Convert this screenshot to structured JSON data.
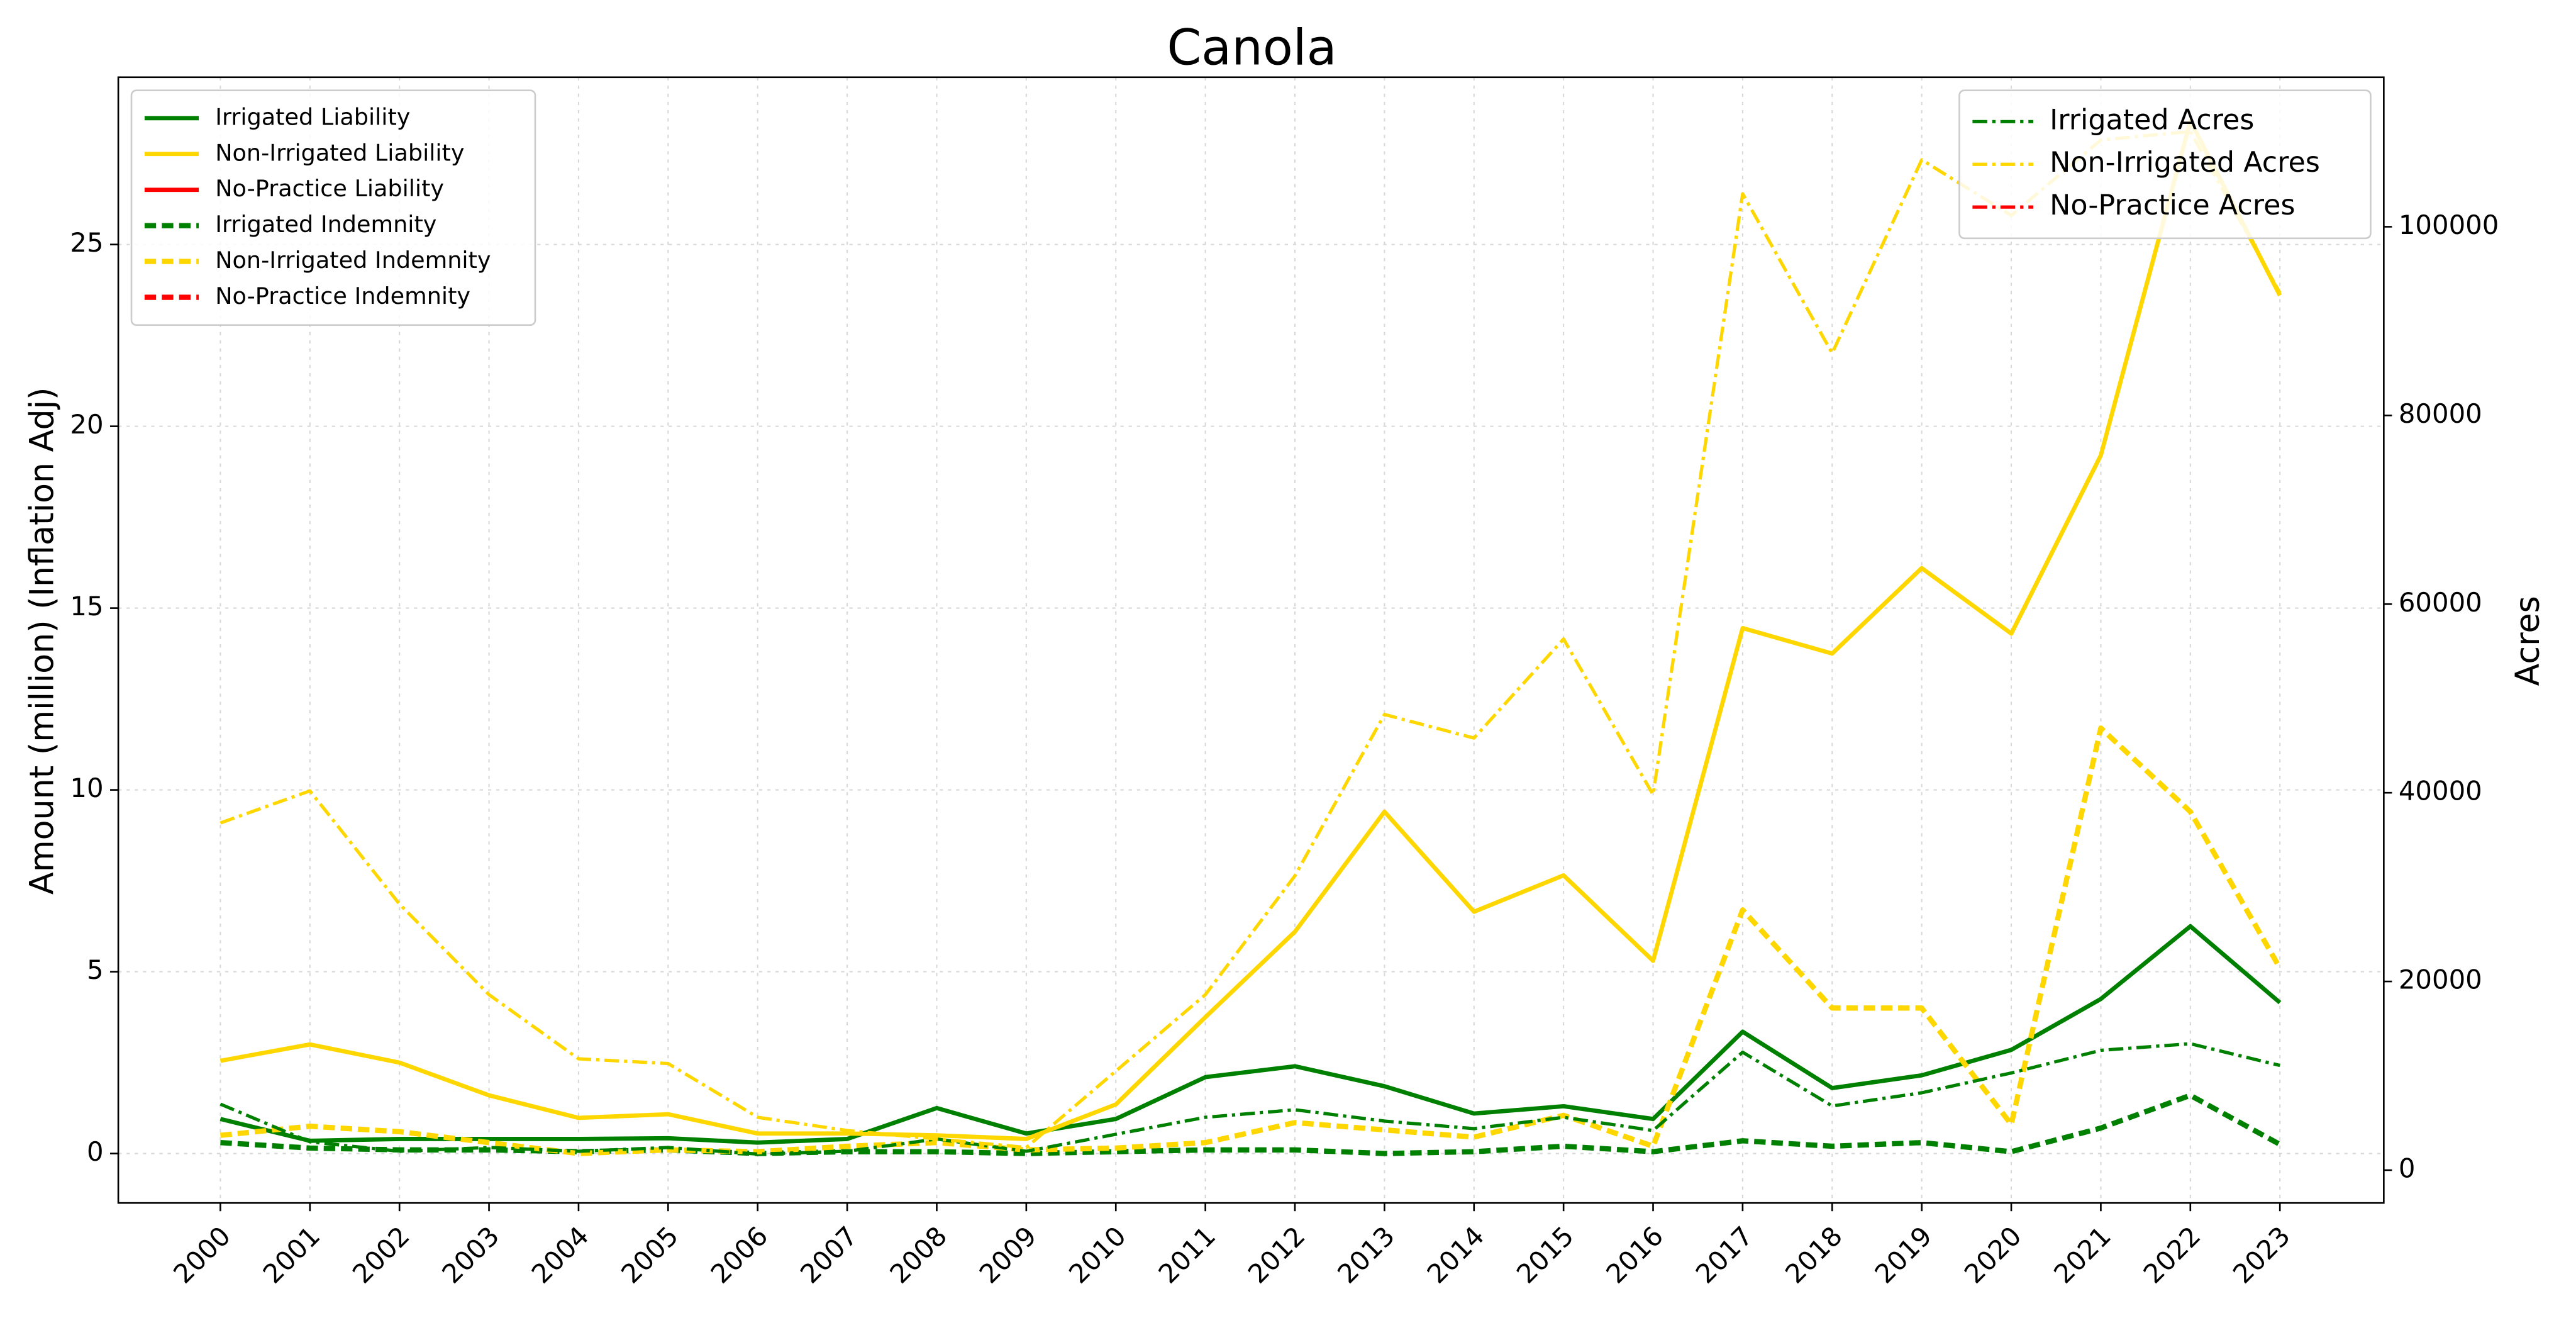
{
  "chart_data": {
    "type": "line",
    "title": "Canola",
    "y_label": "Amount (million) (Inflation Adj)",
    "y2_label": "Acres",
    "x": [
      2000,
      2001,
      2002,
      2003,
      2004,
      2005,
      2006,
      2007,
      2008,
      2009,
      2010,
      2011,
      2012,
      2013,
      2014,
      2015,
      2016,
      2017,
      2018,
      2019,
      2020,
      2021,
      2022,
      2023
    ],
    "xlim": [
      1998.86,
      2024.16
    ],
    "xticks": [
      2000,
      2001,
      2002,
      2003,
      2004,
      2005,
      2006,
      2007,
      2008,
      2009,
      2010,
      2011,
      2012,
      2013,
      2014,
      2015,
      2016,
      2017,
      2018,
      2019,
      2020,
      2021,
      2022,
      2023
    ],
    "ylim": [
      -1.36,
      29.6
    ],
    "yticks": [
      0,
      5,
      10,
      15,
      20,
      25
    ],
    "y2lim": [
      -3480,
      115850
    ],
    "y2ticks": [
      0,
      20000,
      40000,
      60000,
      80000,
      100000
    ],
    "grid": true,
    "legend": "upper left",
    "legend2": "upper right",
    "series": [
      {
        "name": "Irrigated Liability",
        "color": "green",
        "linestyle": "solid",
        "values": [
          0.95,
          0.35,
          0.4,
          0.4,
          0.4,
          0.42,
          0.3,
          0.4,
          1.25,
          0.55,
          0.95,
          2.1,
          2.4,
          1.85,
          1.1,
          1.3,
          0.95,
          3.35,
          1.8,
          2.15,
          2.85,
          4.25,
          6.25,
          4.15
        ]
      },
      {
        "name": "Non-Irrigated Liability",
        "color": "gold",
        "linestyle": "solid",
        "values": [
          2.55,
          3.0,
          2.5,
          1.6,
          0.98,
          1.08,
          0.55,
          0.55,
          0.5,
          0.4,
          1.35,
          3.75,
          6.1,
          9.4,
          6.65,
          7.65,
          5.3,
          14.45,
          13.75,
          16.1,
          14.3,
          19.2,
          28.4,
          23.6
        ]
      },
      {
        "name": "No-Practice Liability",
        "color": "red",
        "linestyle": "solid",
        "values": [
          null,
          null,
          null,
          null,
          null,
          null,
          null,
          null,
          null,
          null,
          null,
          null,
          null,
          null,
          null,
          null,
          null,
          null,
          null,
          null,
          null,
          null,
          null,
          null
        ]
      },
      {
        "name": "Irrigated Indemnity",
        "color": "green",
        "linestyle": "dashed",
        "values": [
          0.3,
          0.15,
          0.1,
          0.1,
          0.05,
          0.1,
          0.0,
          0.05,
          0.05,
          0.0,
          0.05,
          0.1,
          0.1,
          0.0,
          0.05,
          0.2,
          0.05,
          0.35,
          0.2,
          0.3,
          0.05,
          0.7,
          1.6,
          0.25
        ]
      },
      {
        "name": "Non-Irrigated Indemnity",
        "color": "gold",
        "linestyle": "dashed",
        "values": [
          0.5,
          0.75,
          0.6,
          0.3,
          0.0,
          0.1,
          0.05,
          0.2,
          0.3,
          0.1,
          0.15,
          0.3,
          0.85,
          0.65,
          0.45,
          1.05,
          0.2,
          6.7,
          4.0,
          4.0,
          0.8,
          11.7,
          9.4,
          5.1
        ]
      },
      {
        "name": "No-Practice Indemnity",
        "color": "red",
        "linestyle": "dashed",
        "values": [
          null,
          null,
          null,
          null,
          null,
          null,
          null,
          null,
          null,
          null,
          null,
          null,
          null,
          null,
          null,
          null,
          null,
          null,
          null,
          null,
          null,
          null,
          null,
          null
        ]
      },
      {
        "name": "Irrigated Acres",
        "color": "green",
        "linestyle": "dashdot",
        "axis": "y2",
        "values": [
          7000,
          3000,
          2000,
          2400,
          2000,
          2400,
          1700,
          2000,
          3300,
          2000,
          3800,
          5600,
          6400,
          5200,
          4400,
          5600,
          4200,
          12500,
          6800,
          8200,
          10300,
          12700,
          13400,
          11100
        ]
      },
      {
        "name": "Non-Irrigated Acres",
        "color": "gold",
        "linestyle": "dashdot",
        "axis": "y2",
        "values": [
          36800,
          40200,
          28200,
          18600,
          11800,
          11300,
          5600,
          4200,
          3300,
          2400,
          10500,
          18600,
          31200,
          48300,
          45800,
          56300,
          39800,
          103500,
          86600,
          107100,
          101200,
          109200,
          110100,
          93000
        ]
      },
      {
        "name": "No-Practice Acres",
        "color": "red",
        "linestyle": "dashdot",
        "axis": "y2",
        "values": [
          null,
          null,
          null,
          null,
          null,
          null,
          null,
          null,
          null,
          null,
          null,
          null,
          null,
          null,
          null,
          null,
          null,
          null,
          null,
          null,
          null,
          null,
          null,
          null
        ]
      }
    ]
  }
}
